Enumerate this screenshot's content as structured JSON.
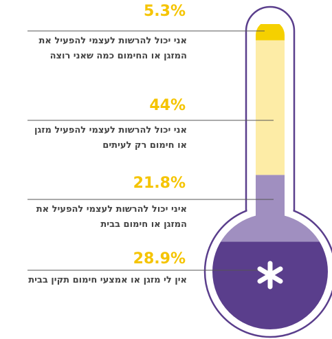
{
  "chart_data": {
    "type": "thermometer",
    "categories": [
      "אני יכול להרשות לעצמי להפעיל את המזגן או החימום כמה שאני רוצה",
      "אני יכול להרשות לעצמי להפעיל מזגן או חימום רק לעיתים",
      "איני יכול להרשות לעצמי להפעיל את המזגן או חימום בבית",
      "אין לי מזגן או אמצעי חימום תקין בבית"
    ],
    "values": [
      5.3,
      44,
      21.8,
      28.9
    ],
    "value_labels": [
      "5.3%",
      "44%",
      "21.8%",
      "28.9%"
    ],
    "colors": [
      "#f5d000",
      "#fdeca6",
      "#a08fc0",
      "#5a3e8c"
    ],
    "ylim": [
      0,
      100
    ]
  }
}
